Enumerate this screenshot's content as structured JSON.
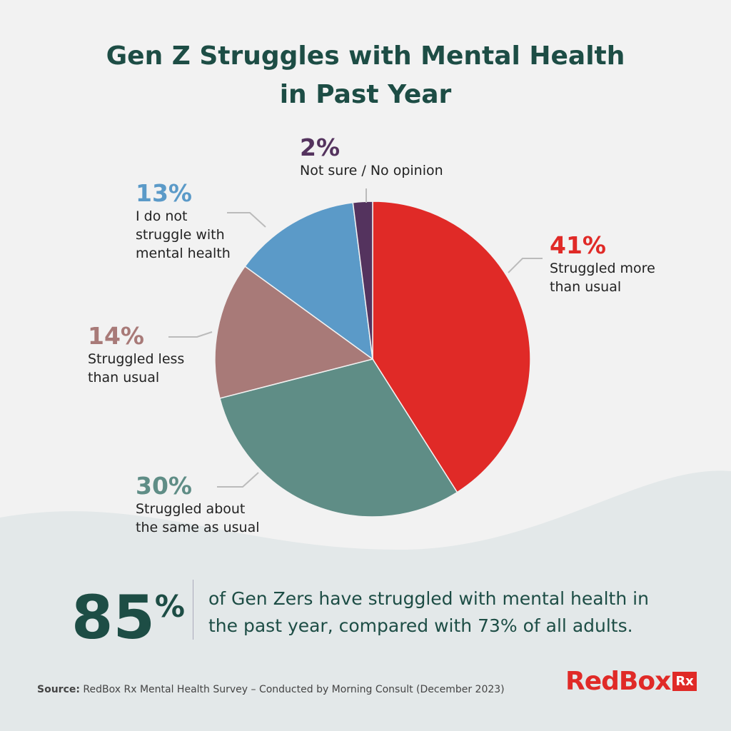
{
  "chart_data": {
    "type": "pie",
    "title": "Gen Z Struggles with Mental Health in Past Year",
    "categories": [
      "Struggled more than usual",
      "Struggled about the same as usual",
      "Struggled less than usual",
      "I do not struggle with mental health",
      "Not sure / No opinion"
    ],
    "values": [
      41,
      30,
      14,
      13,
      2
    ],
    "value_labels": [
      "41%",
      "30%",
      "14%",
      "13%",
      "2%"
    ],
    "colors": [
      "#e02a27",
      "#5f8d86",
      "#a87a78",
      "#5b9ac8",
      "#54335e"
    ],
    "label_colors": [
      "#e02a27",
      "#5f8d86",
      "#a87a78",
      "#5b9ac8",
      "#54335e"
    ]
  },
  "callout": {
    "figure": "85",
    "unit": "%",
    "text": "of Gen Zers have struggled with mental health in the past year, compared with 73% of all adults."
  },
  "source": {
    "label": "Source:",
    "text": "RedBox Rx Mental Health Survey – Conducted by Morning Consult (December 2023)"
  },
  "logo": {
    "name": "RedBox",
    "badge": "Rx"
  }
}
